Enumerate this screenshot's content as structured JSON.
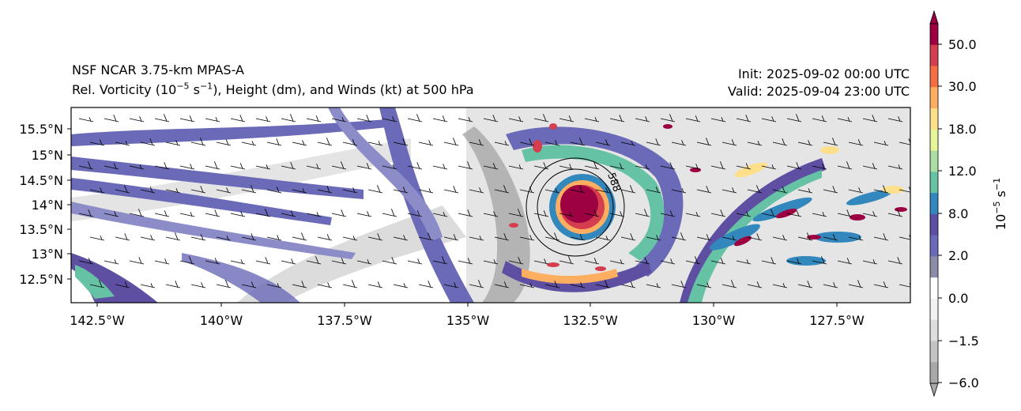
{
  "header": {
    "model": "NSF NCAR 3.75-km MPAS-A",
    "field_prefix": "Rel. Vorticity (10",
    "field_exp1": "−5",
    "field_mid": " s",
    "field_exp2": "−1",
    "field_suffix": "), Height (dm), and Winds (kt) at 500 hPa",
    "init": "Init: 2025-09-02 00:00 UTC",
    "valid": "Valid: 2025-09-04 23:00 UTC"
  },
  "map": {
    "lat_ticks": [
      "15.5°N",
      "15°N",
      "14.5°N",
      "14°N",
      "13.5°N",
      "13°N",
      "12.5°N"
    ],
    "lon_ticks": [
      "142.5°W",
      "140°W",
      "137.5°W",
      "135°W",
      "132.5°W",
      "130°W",
      "127.5°W"
    ],
    "contour_label": "588",
    "storm_center": {
      "lon": "132.5°W",
      "lat": "14°N"
    }
  },
  "colorbar": {
    "label_base": "10",
    "label_exp1": "−5",
    "label_mid": " s",
    "label_exp2": "−1",
    "tick_labels": [
      "50.0",
      "30.0",
      "18.0",
      "12.0",
      "8.0",
      "2.0",
      "0.0",
      "−1.5",
      "−6.0"
    ],
    "colors": [
      "#9e0142",
      "#d53e4f",
      "#f46d43",
      "#fdae61",
      "#fee08b",
      "#e6f598",
      "#abdda4",
      "#66c2a5",
      "#3288bd",
      "#5e4fa2",
      "#6a6ab8",
      "#8c8ca8",
      "#ffffff",
      "#f2f2f2",
      "#dedede",
      "#c4c4c4",
      "#a8a8a8"
    ]
  }
}
